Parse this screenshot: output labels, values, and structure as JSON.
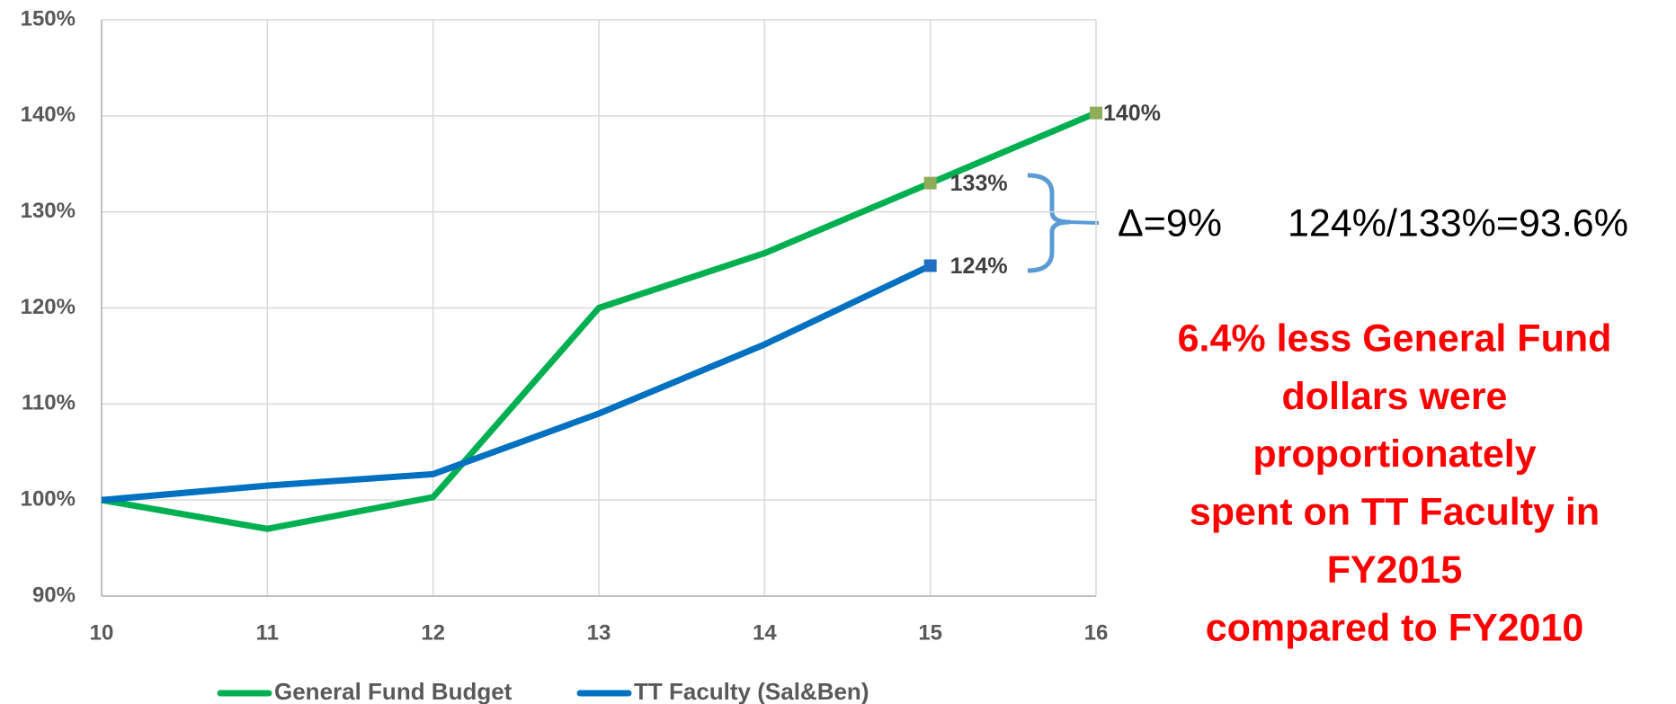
{
  "chart_data": {
    "type": "line",
    "x": [
      10,
      11,
      12,
      13,
      14,
      15,
      16
    ],
    "series": [
      {
        "name": "General Fund Budget",
        "color": "#00b050",
        "marker_color": "#8fac5b",
        "values": [
          100,
          97,
          100.3,
          120,
          125.7,
          133,
          140.3
        ],
        "value_labels": [
          null,
          null,
          null,
          null,
          null,
          "133%",
          "140%"
        ]
      },
      {
        "name": "TT Faculty (Sal&Ben)",
        "color": "#0070c0",
        "marker_color": "#1f6fc4",
        "values": [
          100,
          101.5,
          102.7,
          109,
          116.2,
          124.4,
          null
        ],
        "value_labels": [
          null,
          null,
          null,
          null,
          null,
          "124%",
          null
        ]
      }
    ],
    "xlim": [
      10,
      16
    ],
    "xticks": [
      10,
      11,
      12,
      13,
      14,
      15,
      16
    ],
    "ylim": [
      90,
      150
    ],
    "yticks": [
      {
        "value": 90,
        "label": "90%"
      },
      {
        "value": 100,
        "label": "100%"
      },
      {
        "value": 110,
        "label": "110%"
      },
      {
        "value": 120,
        "label": "120%"
      },
      {
        "value": 130,
        "label": "130%"
      },
      {
        "value": 140,
        "label": "140%"
      },
      {
        "value": 150,
        "label": "150%"
      }
    ],
    "grid": true,
    "legend": "bottom",
    "annotations": {
      "delta": "Δ=9%",
      "ratio": "124%/133%=93.6%",
      "conclusion": [
        "6.4% less General Fund",
        "dollars were",
        "proportionately",
        "spent on TT Faculty in",
        "FY2015",
        "compared to FY2010"
      ],
      "conclusion_color": "#ff0000"
    }
  }
}
